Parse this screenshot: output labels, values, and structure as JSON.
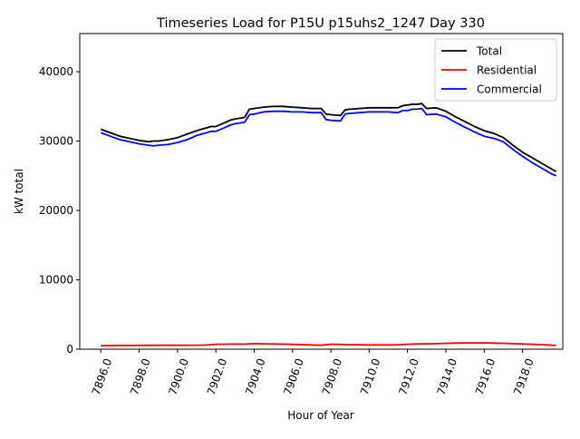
{
  "chart_data": {
    "type": "line",
    "title": "Timeseries Load for P15U p15uhs2_1247  Day 330",
    "xlabel": "Hour of Year",
    "ylabel": "kW total",
    "xlim": [
      7894.9,
      7920.1
    ],
    "ylim": [
      0,
      45500
    ],
    "xticks": [
      7896,
      7898,
      7900,
      7902,
      7904,
      7906,
      7908,
      7910,
      7912,
      7914,
      7916,
      7918
    ],
    "xtick_labels": [
      "7896.0",
      "7898.0",
      "7900.0",
      "7902.0",
      "7904.0",
      "7906.0",
      "7908.0",
      "7910.0",
      "7912.0",
      "7914.0",
      "7916.0",
      "7918.0"
    ],
    "yticks": [
      0,
      10000,
      20000,
      30000,
      40000
    ],
    "ytick_labels": [
      "0",
      "10000",
      "20000",
      "30000",
      "40000"
    ],
    "legend_position": "top-right",
    "series": [
      {
        "name": "Total",
        "color": "#000000",
        "x": [
          7896.0,
          7896.5,
          7897.0,
          7897.5,
          7898.0,
          7898.5,
          7898.75,
          7899.0,
          7899.5,
          7900.0,
          7900.5,
          7901.0,
          7901.5,
          7901.75,
          7902.0,
          7902.5,
          7902.75,
          7903.0,
          7903.5,
          7903.75,
          7904.0,
          7904.5,
          7905.0,
          7905.5,
          7906.0,
          7906.5,
          7907.0,
          7907.5,
          7907.75,
          7908.0,
          7908.5,
          7908.75,
          7909.0,
          7909.5,
          7910.0,
          7910.5,
          7911.0,
          7911.5,
          7911.75,
          7912.0,
          7912.25,
          7912.5,
          7912.75,
          7913.0,
          7913.5,
          7914.0,
          7914.5,
          7915.0,
          7915.5,
          7916.0,
          7916.5,
          7917.0,
          7917.5,
          7918.0,
          7918.5,
          7919.0,
          7919.5,
          7919.75
        ],
        "values": [
          31700,
          31200,
          30700,
          30400,
          30100,
          29900,
          30000,
          30000,
          30200,
          30500,
          31000,
          31500,
          31900,
          32100,
          32100,
          32700,
          33000,
          33200,
          33400,
          34600,
          34700,
          34900,
          35000,
          35000,
          34900,
          34800,
          34700,
          34700,
          33900,
          33800,
          33700,
          34500,
          34600,
          34700,
          34800,
          34800,
          34800,
          34800,
          35100,
          35200,
          35300,
          35300,
          35400,
          34700,
          34800,
          34300,
          33500,
          32800,
          32100,
          31500,
          31100,
          30500,
          29400,
          28400,
          27600,
          26800,
          26000,
          25600
        ]
      },
      {
        "name": "Residential",
        "color": "#ff0000",
        "x": [
          7896.0,
          7897.0,
          7898.0,
          7899.0,
          7900.0,
          7901.0,
          7901.5,
          7902.0,
          7902.5,
          7903.0,
          7903.5,
          7904.0,
          7905.0,
          7906.0,
          7907.0,
          7907.5,
          7908.0,
          7909.0,
          7910.0,
          7911.0,
          7911.5,
          7912.0,
          7912.5,
          7913.0,
          7913.5,
          7914.0,
          7914.5,
          7915.0,
          7915.5,
          7916.0,
          7916.5,
          7917.0,
          7917.5,
          7918.0,
          7918.5,
          7919.0,
          7919.75
        ],
        "values": [
          500,
          530,
          550,
          560,
          560,
          580,
          600,
          700,
          720,
          750,
          720,
          800,
          750,
          700,
          620,
          580,
          720,
          650,
          620,
          620,
          640,
          700,
          760,
          760,
          800,
          850,
          880,
          900,
          900,
          920,
          870,
          850,
          800,
          750,
          700,
          650,
          550
        ]
      },
      {
        "name": "Commercial",
        "color": "#0000ff",
        "x": [
          7896.0,
          7896.5,
          7897.0,
          7897.5,
          7898.0,
          7898.5,
          7898.75,
          7899.0,
          7899.5,
          7900.0,
          7900.5,
          7901.0,
          7901.5,
          7901.75,
          7902.0,
          7902.5,
          7902.75,
          7903.0,
          7903.5,
          7903.75,
          7904.0,
          7904.5,
          7905.0,
          7905.5,
          7906.0,
          7906.5,
          7907.0,
          7907.5,
          7907.75,
          7908.0,
          7908.5,
          7908.75,
          7909.0,
          7909.5,
          7910.0,
          7910.5,
          7911.0,
          7911.5,
          7911.75,
          7912.0,
          7912.25,
          7912.5,
          7912.75,
          7913.0,
          7913.5,
          7914.0,
          7914.5,
          7915.0,
          7915.5,
          7916.0,
          7916.5,
          7917.0,
          7917.5,
          7918.0,
          7918.5,
          7919.0,
          7919.5,
          7919.75
        ],
        "values": [
          31200,
          30700,
          30200,
          29900,
          29600,
          29400,
          29300,
          29400,
          29500,
          29800,
          30200,
          30800,
          31200,
          31400,
          31400,
          32000,
          32300,
          32500,
          32700,
          33800,
          33900,
          34200,
          34300,
          34300,
          34200,
          34200,
          34100,
          34100,
          33100,
          33000,
          32900,
          33900,
          34000,
          34100,
          34200,
          34200,
          34200,
          34100,
          34400,
          34400,
          34600,
          34600,
          34700,
          33800,
          33900,
          33500,
          32700,
          32000,
          31300,
          30700,
          30400,
          29900,
          28800,
          27800,
          26900,
          26100,
          25300,
          25000
        ]
      }
    ]
  }
}
